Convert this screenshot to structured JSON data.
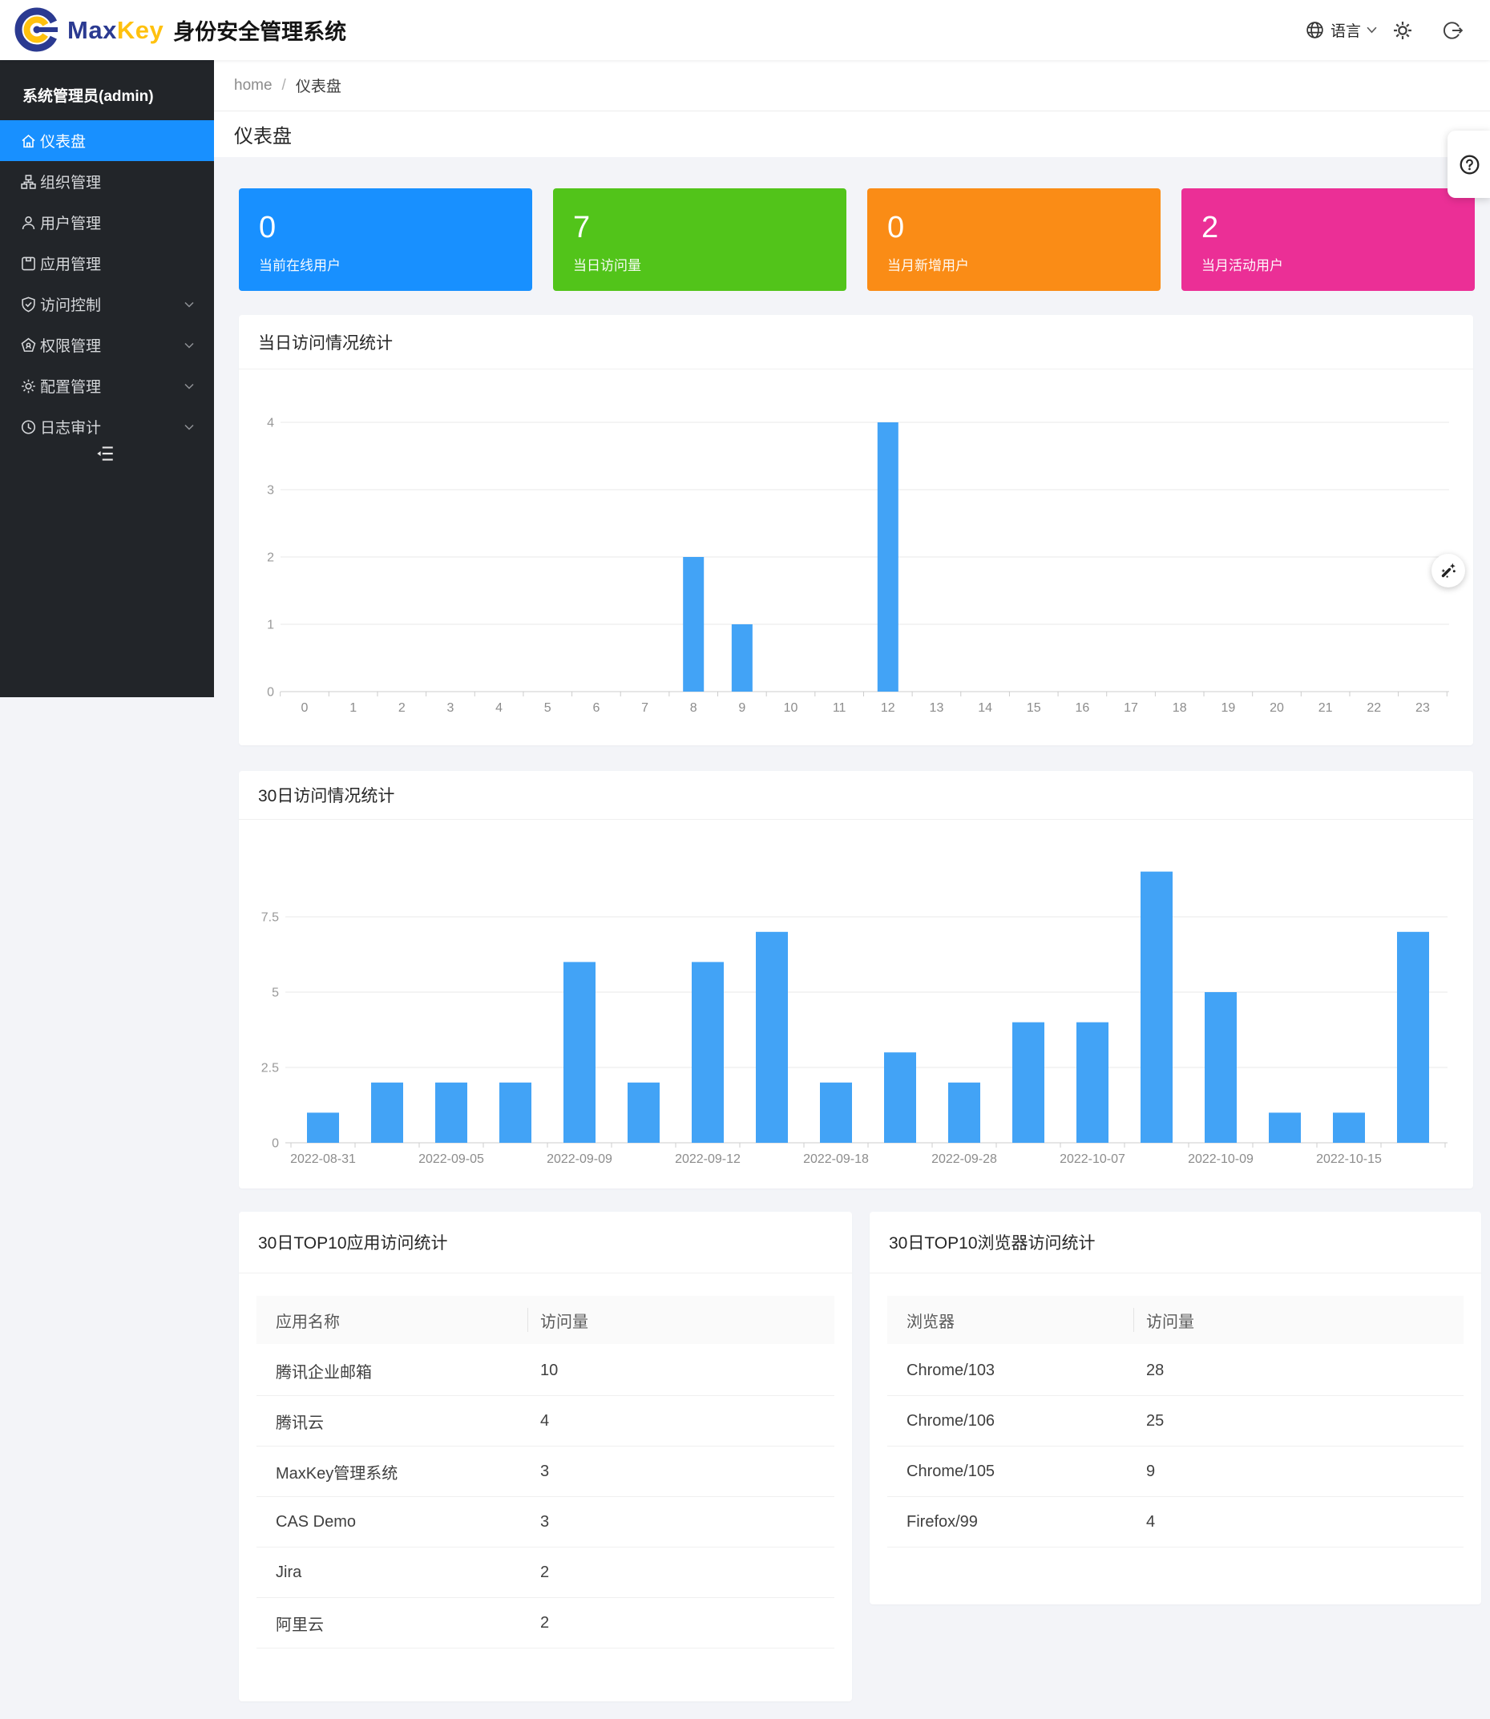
{
  "header": {
    "brand_max": "Max",
    "brand_key": "Key",
    "brand_suffix": "身份安全管理系统",
    "language_label": "语言"
  },
  "breadcrumb": {
    "home": "home",
    "separator": "/",
    "current": "仪表盘"
  },
  "page_title": "仪表盘",
  "sidebar": {
    "user_label": "系统管理员(admin)",
    "items": [
      {
        "key": "dashboard",
        "label": "仪表盘",
        "icon": "home-icon",
        "active": true,
        "has_children": false
      },
      {
        "key": "org",
        "label": "组织管理",
        "icon": "org-icon",
        "active": false,
        "has_children": false
      },
      {
        "key": "users",
        "label": "用户管理",
        "icon": "user-icon",
        "active": false,
        "has_children": false
      },
      {
        "key": "apps",
        "label": "应用管理",
        "icon": "app-icon",
        "active": false,
        "has_children": false
      },
      {
        "key": "access",
        "label": "访问控制",
        "icon": "shield-check-icon",
        "active": false,
        "has_children": true
      },
      {
        "key": "privilege",
        "label": "权限管理",
        "icon": "pentagon-icon",
        "active": false,
        "has_children": true
      },
      {
        "key": "config",
        "label": "配置管理",
        "icon": "gear-icon",
        "active": false,
        "has_children": true
      },
      {
        "key": "audit",
        "label": "日志审计",
        "icon": "clock-icon",
        "active": false,
        "has_children": true
      }
    ]
  },
  "stat_cards": [
    {
      "key": "online-users",
      "value": "0",
      "label": "当前在线用户",
      "color": "#1890ff"
    },
    {
      "key": "today-visits",
      "value": "7",
      "label": "当日访问量",
      "color": "#52c41a"
    },
    {
      "key": "month-new-users",
      "value": "0",
      "label": "当月新增用户",
      "color": "#fa8c16"
    },
    {
      "key": "month-active-users",
      "value": "2",
      "label": "当月活动用户",
      "color": "#eb2f96"
    }
  ],
  "chart_data": [
    {
      "type": "bar",
      "title": "当日访问情况统计",
      "categories": [
        "0",
        "1",
        "2",
        "3",
        "4",
        "5",
        "6",
        "7",
        "8",
        "9",
        "10",
        "11",
        "12",
        "13",
        "14",
        "15",
        "16",
        "17",
        "18",
        "19",
        "20",
        "21",
        "22",
        "23"
      ],
      "values": [
        0,
        0,
        0,
        0,
        0,
        0,
        0,
        0,
        2,
        1,
        0,
        0,
        4,
        0,
        0,
        0,
        0,
        0,
        0,
        0,
        0,
        0,
        0,
        0
      ],
      "yticks": [
        0,
        1,
        2,
        3,
        4
      ],
      "ylim": [
        0,
        4
      ],
      "xlabel": "",
      "ylabel": "",
      "grid": true,
      "legend": false,
      "bar_color": "#42a3f6"
    },
    {
      "type": "bar",
      "title": "30日访问情况统计",
      "categories": [
        "2022-08-31",
        "",
        "2022-09-05",
        "",
        "2022-09-09",
        "",
        "2022-09-12",
        "",
        "2022-09-18",
        "",
        "2022-09-28",
        "",
        "2022-10-07",
        "",
        "2022-10-09",
        "",
        "2022-10-15",
        ""
      ],
      "values": [
        1,
        2,
        2,
        2,
        6,
        2,
        6,
        7,
        2,
        3,
        2,
        4,
        4,
        9,
        5,
        1,
        1,
        7
      ],
      "yticks": [
        0,
        2.5,
        5,
        7.5
      ],
      "ylim": [
        0,
        9
      ],
      "xlabel": "",
      "ylabel": "",
      "grid": true,
      "legend": false,
      "bar_color": "#42a3f6"
    }
  ],
  "tables": [
    {
      "key": "top10-apps",
      "title": "30日TOP10应用访问统计",
      "columns": [
        "应用名称",
        "访问量"
      ],
      "rows": [
        [
          "腾讯企业邮箱",
          "10"
        ],
        [
          "腾讯云",
          "4"
        ],
        [
          "MaxKey管理系统",
          "3"
        ],
        [
          "CAS Demo",
          "3"
        ],
        [
          "Jira",
          "2"
        ],
        [
          "阿里云",
          "2"
        ]
      ]
    },
    {
      "key": "top10-browsers",
      "title": "30日TOP10浏览器访问统计",
      "columns": [
        "浏览器",
        "访问量"
      ],
      "rows": [
        [
          "Chrome/103",
          "28"
        ],
        [
          "Chrome/106",
          "25"
        ],
        [
          "Chrome/105",
          "9"
        ],
        [
          "Firefox/99",
          "4"
        ]
      ]
    }
  ]
}
